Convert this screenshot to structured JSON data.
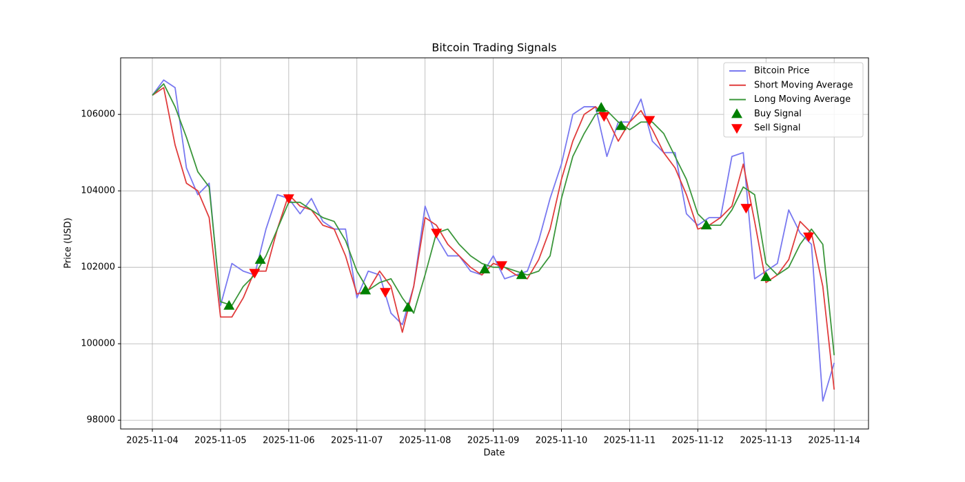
{
  "chart_data": {
    "type": "line",
    "title": "Bitcoin Trading Signals",
    "xlabel": "Date",
    "ylabel": "Price (USD)",
    "x": [
      "2025-11-04 00:00",
      "2025-11-04 04:00",
      "2025-11-04 08:00",
      "2025-11-04 12:00",
      "2025-11-04 16:00",
      "2025-11-04 20:00",
      "2025-11-05 00:00",
      "2025-11-05 04:00",
      "2025-11-05 08:00",
      "2025-11-05 12:00",
      "2025-11-05 16:00",
      "2025-11-05 20:00",
      "2025-11-06 00:00",
      "2025-11-06 04:00",
      "2025-11-06 08:00",
      "2025-11-06 12:00",
      "2025-11-06 16:00",
      "2025-11-06 20:00",
      "2025-11-07 00:00",
      "2025-11-07 04:00",
      "2025-11-07 08:00",
      "2025-11-07 12:00",
      "2025-11-07 16:00",
      "2025-11-07 20:00",
      "2025-11-08 00:00",
      "2025-11-08 04:00",
      "2025-11-08 08:00",
      "2025-11-08 12:00",
      "2025-11-08 16:00",
      "2025-11-08 20:00",
      "2025-11-09 00:00",
      "2025-11-09 04:00",
      "2025-11-09 08:00",
      "2025-11-09 12:00",
      "2025-11-09 16:00",
      "2025-11-09 20:00",
      "2025-11-10 00:00",
      "2025-11-10 04:00",
      "2025-11-10 08:00",
      "2025-11-10 12:00",
      "2025-11-10 16:00",
      "2025-11-10 20:00",
      "2025-11-11 00:00",
      "2025-11-11 04:00",
      "2025-11-11 08:00",
      "2025-11-11 12:00",
      "2025-11-11 16:00",
      "2025-11-11 20:00",
      "2025-11-12 00:00",
      "2025-11-12 04:00",
      "2025-11-12 08:00",
      "2025-11-12 12:00",
      "2025-11-12 16:00",
      "2025-11-12 20:00",
      "2025-11-13 00:00",
      "2025-11-13 04:00",
      "2025-11-13 08:00",
      "2025-11-13 12:00",
      "2025-11-13 16:00",
      "2025-11-13 20:00",
      "2025-11-14 00:00"
    ],
    "series": [
      {
        "name": "Bitcoin Price",
        "color": "#7878f0",
        "values": [
          106500,
          106900,
          106700,
          104600,
          103900,
          104200,
          101000,
          102100,
          101900,
          101800,
          103000,
          103900,
          103800,
          103400,
          103800,
          103200,
          103000,
          103000,
          101200,
          101900,
          101800,
          100800,
          100500,
          101500,
          103600,
          102800,
          102300,
          102300,
          101900,
          101800,
          102300,
          101700,
          101800,
          101900,
          102700,
          103800,
          104700,
          106000,
          106200,
          106200,
          104900,
          105800,
          105800,
          106400,
          105300,
          105000,
          105000,
          103400,
          103100,
          103300,
          103300,
          104900,
          105000,
          101700,
          101900,
          102100,
          103500,
          102900,
          102600,
          98500,
          99500
        ]
      },
      {
        "name": "Short Moving Average",
        "color": "#e03c3c",
        "values": [
          106500,
          106700,
          105200,
          104200,
          104000,
          103300,
          100700,
          100700,
          101200,
          101900,
          101900,
          103000,
          103900,
          103600,
          103500,
          103100,
          103000,
          102300,
          101300,
          101400,
          101900,
          101500,
          100300,
          101500,
          103300,
          103100,
          102600,
          102300,
          102000,
          101800,
          102100,
          102000,
          101800,
          101700,
          102200,
          103000,
          104300,
          105300,
          106000,
          106200,
          105900,
          105300,
          105800,
          106100,
          105600,
          105000,
          104600,
          103900,
          103000,
          103100,
          103300,
          103600,
          104700,
          103200,
          101600,
          101800,
          102200,
          103200,
          102900,
          101500,
          98800
        ]
      },
      {
        "name": "Long Moving Average",
        "color": "#3a963a",
        "values": [
          106500,
          106800,
          106200,
          105400,
          104500,
          104100,
          101100,
          101000,
          101500,
          101800,
          102300,
          103000,
          103700,
          103700,
          103500,
          103300,
          103200,
          102700,
          101900,
          101400,
          101600,
          101700,
          101200,
          100800,
          101800,
          102900,
          103000,
          102600,
          102300,
          102100,
          102000,
          102000,
          101900,
          101800,
          101900,
          102300,
          103800,
          104900,
          105500,
          106000,
          106100,
          105800,
          105600,
          105800,
          105800,
          105500,
          104900,
          104300,
          103400,
          103100,
          103100,
          103500,
          104100,
          103900,
          102100,
          101800,
          102000,
          102600,
          103000,
          102600,
          99700
        ]
      },
      {
        "name": "Buy Signal",
        "color": "#008000",
        "marker": "up",
        "x": [
          "2025-11-05 03:00",
          "2025-11-05 14:00",
          "2025-11-07 03:00",
          "2025-11-07 18:00",
          "2025-11-08 21:00",
          "2025-11-09 10:00",
          "2025-11-10 14:00",
          "2025-11-10 21:00",
          "2025-11-12 03:00",
          "2025-11-13 00:00"
        ],
        "values": [
          101000,
          102200,
          101400,
          100950,
          101950,
          101800,
          106180,
          105700,
          103100,
          101750
        ]
      },
      {
        "name": "Sell Signal",
        "color": "#ff0000",
        "marker": "down",
        "x": [
          "2025-11-05 12:00",
          "2025-11-06 00:00",
          "2025-11-07 10:00",
          "2025-11-08 04:00",
          "2025-11-09 03:00",
          "2025-11-10 15:00",
          "2025-11-11 07:00",
          "2025-11-12 17:00",
          "2025-11-13 15:00"
        ],
        "values": [
          101850,
          103800,
          101350,
          102900,
          102050,
          105950,
          105850,
          103550,
          102800
        ]
      }
    ],
    "xlim": [
      "2025-11-03 12:50",
      "2025-11-14 12:05"
    ],
    "xticks": [
      "2025-11-04",
      "2025-11-05",
      "2025-11-06",
      "2025-11-07",
      "2025-11-08",
      "2025-11-09",
      "2025-11-10",
      "2025-11-11",
      "2025-11-12",
      "2025-11-13",
      "2025-11-14"
    ],
    "ylim": [
      97770,
      107480
    ],
    "yticks": [
      98000,
      100000,
      102000,
      104000,
      106000
    ],
    "grid": true,
    "legend": "upper right"
  }
}
